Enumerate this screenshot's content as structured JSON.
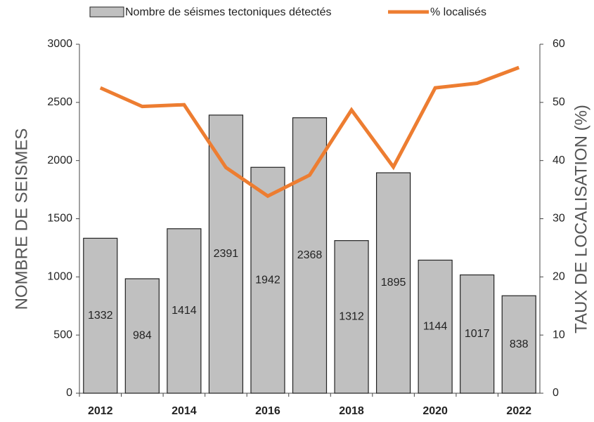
{
  "chart_data": {
    "type": "bar",
    "categories": [
      "2012",
      null,
      "2014",
      null,
      "2016",
      null,
      "2018",
      null,
      "2020",
      null,
      "2022"
    ],
    "series": [
      {
        "name": "Nombre de séismes tectoniques détectés",
        "type": "bar",
        "color": "#c0c0c0",
        "values": [
          1332,
          984,
          1414,
          2391,
          1942,
          2368,
          1312,
          1895,
          1144,
          1017,
          838
        ]
      },
      {
        "name": "% localisés",
        "type": "line",
        "axis": "y2",
        "color": "#ed7d31",
        "values": [
          52.5,
          49.3,
          49.6,
          38.8,
          33.9,
          37.5,
          48.7,
          38.9,
          52.5,
          53.3,
          56
        ]
      }
    ],
    "ylabel": "NOMBRE DE SEISMES",
    "y2label": "TAUX DE LOCALISATION (%)",
    "ylim": [
      0,
      3000
    ],
    "yticks": [
      0,
      500,
      1000,
      1500,
      2000,
      2500,
      3000
    ],
    "y2lim": [
      0,
      60
    ],
    "y2ticks": [
      0,
      10,
      20,
      30,
      40,
      50,
      60
    ],
    "grid": false,
    "legend": "top"
  }
}
